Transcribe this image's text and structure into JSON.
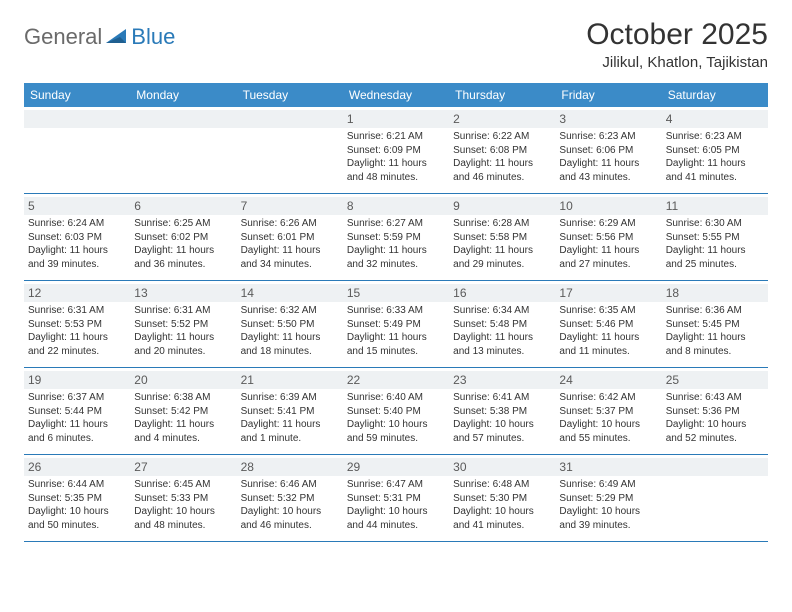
{
  "logo": {
    "part1": "General",
    "part2": "Blue"
  },
  "title": "October 2025",
  "location": "Jilikul, Khatlon, Tajikistan",
  "colors": {
    "header_bg": "#3b8bc8",
    "header_text": "#ffffff",
    "daynum_bg": "#eef1f3",
    "border": "#2a7ab8",
    "logo_gray": "#6a6a6a",
    "logo_blue": "#2a7ab8"
  },
  "day_names": [
    "Sunday",
    "Monday",
    "Tuesday",
    "Wednesday",
    "Thursday",
    "Friday",
    "Saturday"
  ],
  "weeks": [
    [
      {
        "n": "",
        "sr": "",
        "ss": "",
        "dl": ""
      },
      {
        "n": "",
        "sr": "",
        "ss": "",
        "dl": ""
      },
      {
        "n": "",
        "sr": "",
        "ss": "",
        "dl": ""
      },
      {
        "n": "1",
        "sr": "6:21 AM",
        "ss": "6:09 PM",
        "dl": "11 hours and 48 minutes."
      },
      {
        "n": "2",
        "sr": "6:22 AM",
        "ss": "6:08 PM",
        "dl": "11 hours and 46 minutes."
      },
      {
        "n": "3",
        "sr": "6:23 AM",
        "ss": "6:06 PM",
        "dl": "11 hours and 43 minutes."
      },
      {
        "n": "4",
        "sr": "6:23 AM",
        "ss": "6:05 PM",
        "dl": "11 hours and 41 minutes."
      }
    ],
    [
      {
        "n": "5",
        "sr": "6:24 AM",
        "ss": "6:03 PM",
        "dl": "11 hours and 39 minutes."
      },
      {
        "n": "6",
        "sr": "6:25 AM",
        "ss": "6:02 PM",
        "dl": "11 hours and 36 minutes."
      },
      {
        "n": "7",
        "sr": "6:26 AM",
        "ss": "6:01 PM",
        "dl": "11 hours and 34 minutes."
      },
      {
        "n": "8",
        "sr": "6:27 AM",
        "ss": "5:59 PM",
        "dl": "11 hours and 32 minutes."
      },
      {
        "n": "9",
        "sr": "6:28 AM",
        "ss": "5:58 PM",
        "dl": "11 hours and 29 minutes."
      },
      {
        "n": "10",
        "sr": "6:29 AM",
        "ss": "5:56 PM",
        "dl": "11 hours and 27 minutes."
      },
      {
        "n": "11",
        "sr": "6:30 AM",
        "ss": "5:55 PM",
        "dl": "11 hours and 25 minutes."
      }
    ],
    [
      {
        "n": "12",
        "sr": "6:31 AM",
        "ss": "5:53 PM",
        "dl": "11 hours and 22 minutes."
      },
      {
        "n": "13",
        "sr": "6:31 AM",
        "ss": "5:52 PM",
        "dl": "11 hours and 20 minutes."
      },
      {
        "n": "14",
        "sr": "6:32 AM",
        "ss": "5:50 PM",
        "dl": "11 hours and 18 minutes."
      },
      {
        "n": "15",
        "sr": "6:33 AM",
        "ss": "5:49 PM",
        "dl": "11 hours and 15 minutes."
      },
      {
        "n": "16",
        "sr": "6:34 AM",
        "ss": "5:48 PM",
        "dl": "11 hours and 13 minutes."
      },
      {
        "n": "17",
        "sr": "6:35 AM",
        "ss": "5:46 PM",
        "dl": "11 hours and 11 minutes."
      },
      {
        "n": "18",
        "sr": "6:36 AM",
        "ss": "5:45 PM",
        "dl": "11 hours and 8 minutes."
      }
    ],
    [
      {
        "n": "19",
        "sr": "6:37 AM",
        "ss": "5:44 PM",
        "dl": "11 hours and 6 minutes."
      },
      {
        "n": "20",
        "sr": "6:38 AM",
        "ss": "5:42 PM",
        "dl": "11 hours and 4 minutes."
      },
      {
        "n": "21",
        "sr": "6:39 AM",
        "ss": "5:41 PM",
        "dl": "11 hours and 1 minute."
      },
      {
        "n": "22",
        "sr": "6:40 AM",
        "ss": "5:40 PM",
        "dl": "10 hours and 59 minutes."
      },
      {
        "n": "23",
        "sr": "6:41 AM",
        "ss": "5:38 PM",
        "dl": "10 hours and 57 minutes."
      },
      {
        "n": "24",
        "sr": "6:42 AM",
        "ss": "5:37 PM",
        "dl": "10 hours and 55 minutes."
      },
      {
        "n": "25",
        "sr": "6:43 AM",
        "ss": "5:36 PM",
        "dl": "10 hours and 52 minutes."
      }
    ],
    [
      {
        "n": "26",
        "sr": "6:44 AM",
        "ss": "5:35 PM",
        "dl": "10 hours and 50 minutes."
      },
      {
        "n": "27",
        "sr": "6:45 AM",
        "ss": "5:33 PM",
        "dl": "10 hours and 48 minutes."
      },
      {
        "n": "28",
        "sr": "6:46 AM",
        "ss": "5:32 PM",
        "dl": "10 hours and 46 minutes."
      },
      {
        "n": "29",
        "sr": "6:47 AM",
        "ss": "5:31 PM",
        "dl": "10 hours and 44 minutes."
      },
      {
        "n": "30",
        "sr": "6:48 AM",
        "ss": "5:30 PM",
        "dl": "10 hours and 41 minutes."
      },
      {
        "n": "31",
        "sr": "6:49 AM",
        "ss": "5:29 PM",
        "dl": "10 hours and 39 minutes."
      },
      {
        "n": "",
        "sr": "",
        "ss": "",
        "dl": ""
      }
    ]
  ],
  "labels": {
    "sunrise": "Sunrise:",
    "sunset": "Sunset:",
    "daylight": "Daylight:"
  }
}
